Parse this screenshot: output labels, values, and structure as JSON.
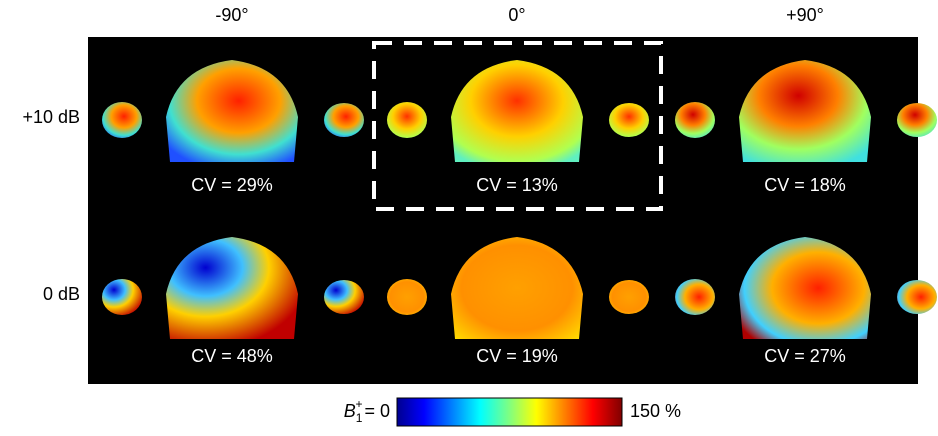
{
  "columns": [
    "-90°",
    "0°",
    "+90°"
  ],
  "rows": [
    {
      "label": "+10 dB",
      "panels": [
        "CV = 29%",
        "CV = 13%",
        "CV = 18%"
      ]
    },
    {
      "label": "0 dB",
      "panels": [
        "CV = 48%",
        "CV = 19%",
        "CV = 27%"
      ]
    }
  ],
  "colorbar": {
    "symbol": "B",
    "subscript": "1",
    "superscript": "+",
    "min_label": "= 0",
    "max_label": "150 %"
  }
}
